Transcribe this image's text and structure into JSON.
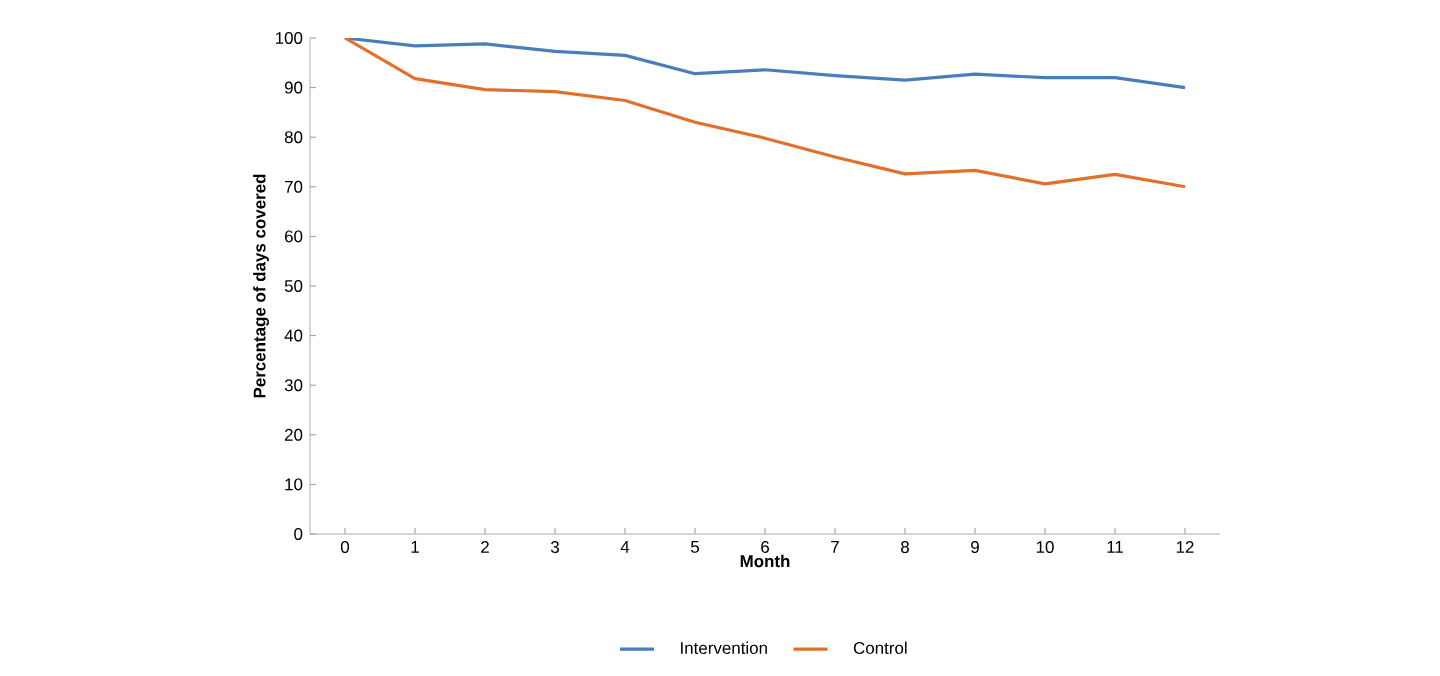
{
  "chart_data": {
    "type": "line",
    "xlabel": "Month",
    "ylabel": "Percentage of days covered",
    "categories": [
      "0",
      "1",
      "2",
      "3",
      "4",
      "5",
      "6",
      "7",
      "8",
      "9",
      "10",
      "11",
      "12"
    ],
    "series": [
      {
        "name": "Intervention",
        "color": "#4a7ebb",
        "values": [
          100,
          98.4,
          98.8,
          97.3,
          96.5,
          92.8,
          93.6,
          92.4,
          91.5,
          92.7,
          92.0,
          92.0,
          90.0
        ]
      },
      {
        "name": "Control",
        "color": "#e0702c",
        "values": [
          100,
          91.8,
          89.6,
          89.2,
          87.4,
          83.0,
          79.8,
          76.0,
          72.6,
          73.3,
          70.6,
          72.5,
          70.0
        ]
      }
    ],
    "ylim": [
      0,
      100
    ],
    "yticks": [
      0,
      10,
      20,
      30,
      40,
      50,
      60,
      70,
      80,
      90,
      100
    ],
    "grid": false,
    "legend": "bottom",
    "marker": "none",
    "line_style": "solid"
  }
}
